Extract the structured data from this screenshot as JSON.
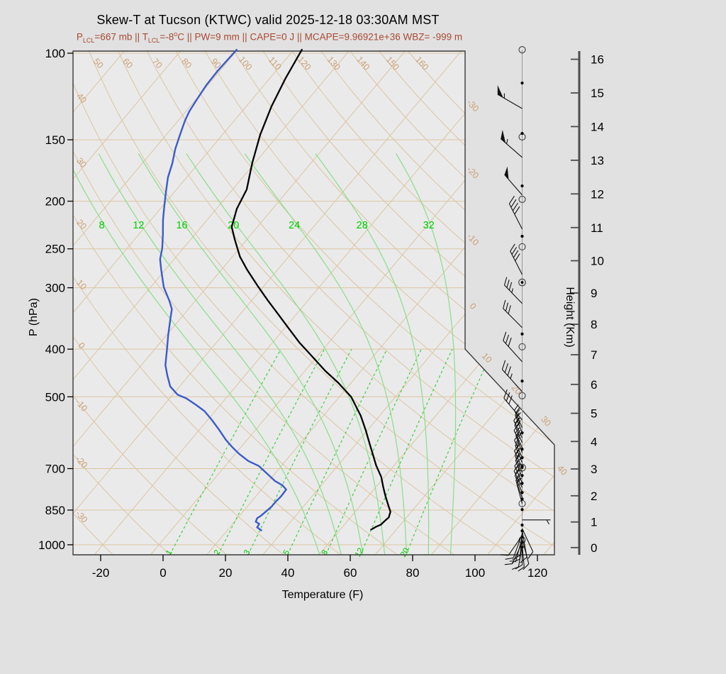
{
  "title": "Skew-T at Tucson (KTWC) valid 2025-12-18 03:30AM MST",
  "subtitle_segments": [
    {
      "text": "P"
    },
    {
      "sub": "LCL"
    },
    {
      "text": "=667 mb || T"
    },
    {
      "sub": "LCL"
    },
    {
      "text": "=-8"
    },
    {
      "sup": "o"
    },
    {
      "text": "C || PW=9 mm || CAPE=0 J || MCAPE=9.96921e+36 WBZ= -999 m"
    }
  ],
  "colors": {
    "page_bg": "#e1e1e1",
    "plot_bg": "#eaeaea",
    "frame": "#3a3a3a",
    "tan_line": "#dcc5a2",
    "tan_label": "#cba077",
    "green_solid": "#8bdd8b",
    "green_dashed": "#3ecf3e",
    "green_label": "#00cc00",
    "temperature_line": "#000000",
    "dewpoint_line": "#3c5bc8",
    "barb": "#111111",
    "staff": "#999999",
    "marker": "#4c4c4c",
    "height_axis": "#4d4d4d",
    "subtitle": "#a84a32"
  },
  "axes": {
    "pressure": {
      "label": "P (hPa)",
      "ticks": [
        100,
        150,
        200,
        250,
        300,
        400,
        500,
        700,
        850,
        1000
      ]
    },
    "temperature": {
      "label": "Temperature (F)",
      "ticks": [
        -20,
        0,
        20,
        40,
        60,
        80,
        100,
        120
      ]
    },
    "height": {
      "label": "Height (Km)",
      "ticks": [
        0,
        1,
        2,
        3,
        4,
        5,
        6,
        7,
        8,
        9,
        10,
        11,
        12,
        13,
        14,
        15,
        16
      ]
    }
  },
  "chart_data": {
    "type": "skewt-sounding",
    "station": "KTWC Tucson",
    "valid": "2025-12-18 03:30AM MST",
    "pressure_range_hpa": [
      99,
      1048
    ],
    "temp_axis_range_f": [
      -30,
      125
    ],
    "isotherms_c": {
      "step": 10,
      "min": -110,
      "max": 50,
      "labels_right_edge": [
        -30,
        -20,
        -10,
        0,
        10,
        20,
        30,
        40
      ]
    },
    "dry_adiabats_theta_c": {
      "step": 10,
      "min": -30,
      "max": 160,
      "labels_left_edge": [
        [
          40,
          137
        ],
        [
          30,
          228
        ],
        [
          20,
          315
        ],
        [
          10,
          400
        ],
        [
          0,
          486
        ],
        [
          -10,
          570
        ],
        [
          -20,
          650
        ],
        [
          -30,
          727
        ]
      ],
      "labels_top": [
        50,
        60,
        70,
        80,
        90,
        100,
        110,
        120,
        130,
        140,
        150,
        160
      ]
    },
    "moist_adiabats_thetaw_c": [
      8,
      12,
      16,
      20,
      24,
      28,
      32
    ],
    "mixing_ratio_gkg": [
      1,
      2,
      3,
      5,
      8,
      12,
      20
    ],
    "temperature_profile_p_tf": [
      [
        98.4,
        -91.4
      ],
      [
        112.3,
        -89.0
      ],
      [
        128.3,
        -85.9
      ],
      [
        146.5,
        -81.9
      ],
      [
        167.4,
        -76.8
      ],
      [
        189.3,
        -71.5
      ],
      [
        207.1,
        -69.5
      ],
      [
        225.7,
        -66.2
      ],
      [
        239.5,
        -61.8
      ],
      [
        259.3,
        -55.6
      ],
      [
        275.4,
        -49.9
      ],
      [
        297.2,
        -42.1
      ],
      [
        317.7,
        -35.1
      ],
      [
        339.4,
        -27.9
      ],
      [
        362.7,
        -20.7
      ],
      [
        387.5,
        -13.5
      ],
      [
        414.1,
        -5.5
      ],
      [
        442.5,
        2.4
      ],
      [
        468.3,
        9.9
      ],
      [
        500.2,
        17.8
      ],
      [
        546.8,
        26.0
      ],
      [
        584.4,
        31.4
      ],
      [
        616.3,
        35.5
      ],
      [
        652.1,
        39.9
      ],
      [
        690.1,
        44.3
      ],
      [
        727.9,
        49.0
      ],
      [
        762.6,
        52.3
      ],
      [
        796.3,
        55.5
      ],
      [
        831.5,
        58.9
      ],
      [
        856.8,
        61.3
      ],
      [
        880.1,
        62.3
      ],
      [
        891.9,
        62.0
      ],
      [
        910,
        61.7
      ],
      [
        919.1,
        60.7
      ],
      [
        931.4,
        59.9
      ]
    ],
    "dewpoint_profile_p_tf": [
      [
        98.4,
        -112.3
      ],
      [
        108.6,
        -112.7
      ],
      [
        116.1,
        -112.5
      ],
      [
        124.1,
        -111.7
      ],
      [
        131.3,
        -110.9
      ],
      [
        137.1,
        -109.8
      ],
      [
        146.5,
        -107.6
      ],
      [
        156.6,
        -105.3
      ],
      [
        167.4,
        -102.4
      ],
      [
        178.9,
        -100.0
      ],
      [
        191.2,
        -96.8
      ],
      [
        204.4,
        -93.5
      ],
      [
        218.5,
        -90.1
      ],
      [
        233.5,
        -86.3
      ],
      [
        249.6,
        -82.7
      ],
      [
        262.4,
        -80.5
      ],
      [
        275.4,
        -77.4
      ],
      [
        299.2,
        -71.8
      ],
      [
        319.8,
        -66.1
      ],
      [
        331.6,
        -63.3
      ],
      [
        347.4,
        -61.1
      ],
      [
        375,
        -57.4
      ],
      [
        400.6,
        -54.0
      ],
      [
        431,
        -50.3
      ],
      [
        453,
        -46.8
      ],
      [
        476.4,
        -43.0
      ],
      [
        495.2,
        -38.4
      ],
      [
        503.5,
        -34.7
      ],
      [
        520.6,
        -29.4
      ],
      [
        534.7,
        -25.4
      ],
      [
        556.5,
        -20.8
      ],
      [
        581.3,
        -16.1
      ],
      [
        611.2,
        -10.9
      ],
      [
        631.9,
        -7.0
      ],
      [
        653.3,
        -2.8
      ],
      [
        675.4,
        2.1
      ],
      [
        691.4,
        6.8
      ],
      [
        717.2,
        11.6
      ],
      [
        741.6,
        16.0
      ],
      [
        756.6,
        19.5
      ],
      [
        771.8,
        21.9
      ],
      [
        797.9,
        22.1
      ],
      [
        816.8,
        21.8
      ],
      [
        836.1,
        21.8
      ],
      [
        856.8,
        21.3
      ],
      [
        874.2,
        20.8
      ],
      [
        883,
        20.3
      ],
      [
        897.8,
        20.8
      ],
      [
        906.8,
        22.5
      ],
      [
        922.1,
        22.8
      ],
      [
        934.5,
        24.9
      ]
    ],
    "wind_barbs": [
      {
        "p": 129.6,
        "dir": 300,
        "spd": 55,
        "len": 40
      },
      {
        "p": 162.9,
        "dir": 311,
        "spd": 55,
        "len": 40
      },
      {
        "p": 194.3,
        "dir": 319,
        "spd": 50,
        "len": 38
      },
      {
        "p": 227.9,
        "dir": 333,
        "spd": 40,
        "len": 40
      },
      {
        "p": 282.0,
        "dir": 333,
        "spd": 40,
        "len": 37
      },
      {
        "p": 323.0,
        "dir": 316,
        "spd": 35,
        "len": 36
      },
      {
        "p": 361.6,
        "dir": 315,
        "spd": 30,
        "len": 38
      },
      {
        "p": 424.3,
        "dir": 318,
        "spd": 30,
        "len": 40
      },
      {
        "p": 488.1,
        "dir": 318,
        "spd": 35,
        "len": 42
      },
      {
        "p": 557.2,
        "dir": 320,
        "spd": 30,
        "len": 40
      },
      {
        "p": 578,
        "dir": 336,
        "spd": 25,
        "len": 27
      },
      {
        "p": 592,
        "dir": 339,
        "spd": 25,
        "len": 27
      },
      {
        "p": 606,
        "dir": 334,
        "spd": 30,
        "len": 27
      },
      {
        "p": 620,
        "dir": 337,
        "spd": 25,
        "len": 27
      },
      {
        "p": 635,
        "dir": 335,
        "spd": 25,
        "len": 27
      },
      {
        "p": 650,
        "dir": 340,
        "spd": 20,
        "len": 26
      },
      {
        "p": 665,
        "dir": 336,
        "spd": 25,
        "len": 27
      },
      {
        "p": 681,
        "dir": 338,
        "spd": 25,
        "len": 26
      },
      {
        "p": 697,
        "dir": 335,
        "spd": 25,
        "len": 26
      },
      {
        "p": 713,
        "dir": 337,
        "spd": 20,
        "len": 26
      },
      {
        "p": 730,
        "dir": 339,
        "spd": 25,
        "len": 26
      },
      {
        "p": 748,
        "dir": 336,
        "spd": 25,
        "len": 26
      },
      {
        "p": 765,
        "dir": 334,
        "spd": 20,
        "len": 26
      },
      {
        "p": 783,
        "dir": 337,
        "spd": 25,
        "len": 26
      },
      {
        "p": 802,
        "dir": 340,
        "spd": 20,
        "len": 26
      },
      {
        "p": 824.6,
        "dir": 345,
        "spd": 15,
        "len": 30
      },
      {
        "p": 890,
        "dir": 90,
        "spd": 5,
        "len": 40
      },
      {
        "p": 927,
        "dir": 155,
        "spd": 10,
        "len": 36
      },
      {
        "p": 936,
        "dir": 170,
        "spd": 10,
        "len": 38
      },
      {
        "p": 943,
        "dir": 185,
        "spd": 15,
        "len": 38
      },
      {
        "p": 950,
        "dir": 200,
        "spd": 10,
        "len": 36
      },
      {
        "p": 958,
        "dir": 215,
        "spd": 10,
        "len": 34
      },
      {
        "p": 966,
        "dir": 195,
        "spd": 5,
        "len": 36
      },
      {
        "p": 974,
        "dir": 165,
        "spd": 10,
        "len": 36
      },
      {
        "p": 982,
        "dir": 180,
        "spd": 10,
        "len": 34
      },
      {
        "p": 990,
        "dir": 205,
        "spd": 15,
        "len": 33
      },
      {
        "p": 998,
        "dir": 175,
        "spd": 10,
        "len": 32
      },
      {
        "p": 1006,
        "dir": 190,
        "spd": 10,
        "len": 30
      }
    ],
    "station_dots_p": [
      115,
      145.6,
      186.2,
      235.7,
      372.6,
      464.5,
      592,
      639,
      665,
      692,
      723,
      750,
      783,
      807,
      848,
      912,
      937,
      965,
      988,
      1011
    ],
    "station_circles_p": [
      98.4,
      148,
      198.3,
      247.6,
      395.6,
      497.5,
      824.6,
      978
    ],
    "station_circled_dots_p": [
      292.6,
      696.6
    ]
  }
}
